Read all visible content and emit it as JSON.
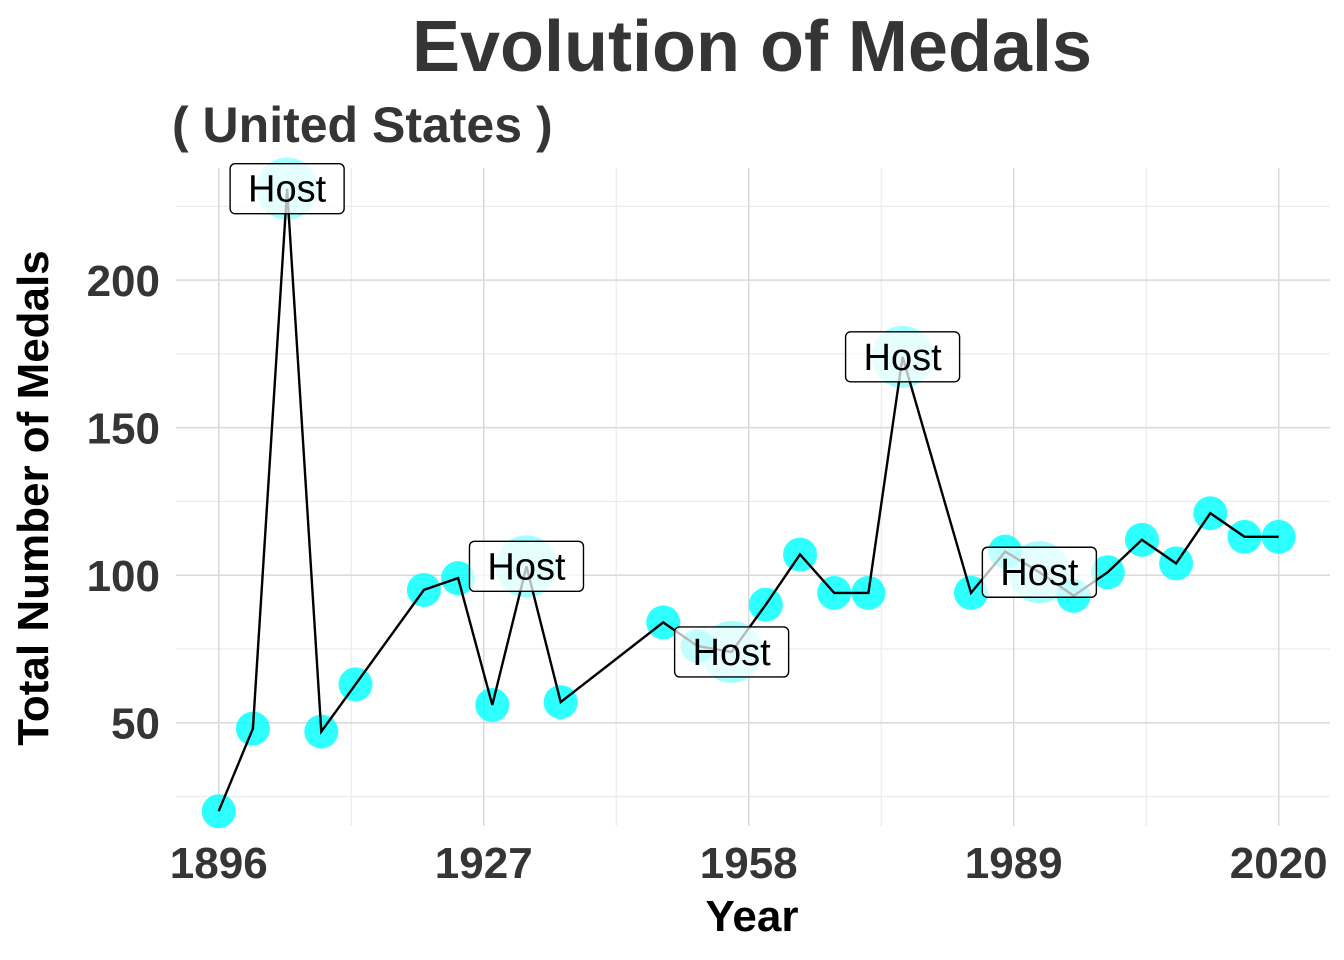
{
  "chart_data": {
    "type": "line",
    "title": "Evolution of Medals",
    "subtitle": "( United States )",
    "xlabel": "Year",
    "ylabel": "Total Number of Medals",
    "xlim": [
      1891,
      2026
    ],
    "ylim": [
      15,
      238
    ],
    "x_ticks": [
      1896,
      1927,
      1958,
      1989,
      2020
    ],
    "y_ticks": [
      50,
      100,
      150,
      200
    ],
    "grid": true,
    "point_color": "#00FFFF",
    "line_color": "#000000",
    "host_label": "Host",
    "series": [
      {
        "x": [
          1896,
          1900,
          1904,
          1908,
          1912,
          1920,
          1924,
          1928,
          1932,
          1936,
          1948,
          1952,
          1956,
          1960,
          1964,
          1968,
          1972,
          1976,
          1984,
          1988,
          1992,
          1996,
          2000,
          2004,
          2008,
          2012,
          2016,
          2020
        ],
        "y": [
          20,
          48,
          231,
          47,
          63,
          95,
          99,
          56,
          103,
          57,
          84,
          76,
          74,
          90,
          107,
          94,
          94,
          174,
          94,
          108,
          101,
          93,
          101,
          112,
          104,
          121,
          113,
          113
        ],
        "host": [
          false,
          false,
          true,
          false,
          false,
          false,
          false,
          false,
          true,
          false,
          false,
          false,
          true,
          false,
          false,
          false,
          false,
          true,
          false,
          false,
          true,
          false,
          false,
          false,
          false,
          false,
          false,
          false
        ]
      }
    ]
  }
}
